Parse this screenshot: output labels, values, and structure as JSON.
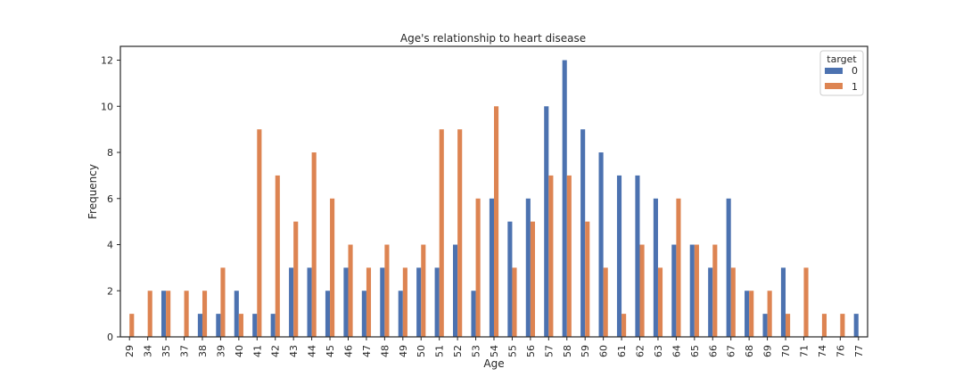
{
  "chart_data": {
    "type": "bar",
    "title": "Age's relationship to heart disease",
    "xlabel": "Age",
    "ylabel": "Frequency",
    "ylim": [
      0,
      12.6
    ],
    "yticks": [
      0,
      2,
      4,
      6,
      8,
      10,
      12
    ],
    "grid": false,
    "legend": {
      "title": "target",
      "placement": "top-right"
    },
    "categories": [
      "29",
      "34",
      "35",
      "37",
      "38",
      "39",
      "40",
      "41",
      "42",
      "43",
      "44",
      "45",
      "46",
      "47",
      "48",
      "49",
      "50",
      "51",
      "52",
      "53",
      "54",
      "55",
      "56",
      "57",
      "58",
      "59",
      "60",
      "61",
      "62",
      "63",
      "64",
      "65",
      "66",
      "67",
      "68",
      "69",
      "70",
      "71",
      "74",
      "76",
      "77"
    ],
    "series": [
      {
        "name": "0",
        "color": "#4c72b0",
        "values": [
          0,
          0,
          2,
          0,
          1,
          1,
          2,
          1,
          1,
          3,
          3,
          2,
          3,
          2,
          3,
          2,
          3,
          3,
          4,
          2,
          6,
          5,
          6,
          10,
          12,
          9,
          8,
          7,
          7,
          6,
          4,
          4,
          3,
          6,
          2,
          1,
          3,
          0,
          0,
          0,
          1
        ]
      },
      {
        "name": "1",
        "color": "#dd8452",
        "values": [
          1,
          2,
          2,
          2,
          2,
          3,
          1,
          9,
          7,
          5,
          8,
          6,
          4,
          3,
          4,
          3,
          4,
          9,
          9,
          6,
          10,
          3,
          5,
          7,
          7,
          5,
          3,
          1,
          4,
          3,
          6,
          4,
          4,
          3,
          2,
          2,
          1,
          3,
          1,
          1,
          0
        ]
      }
    ]
  }
}
